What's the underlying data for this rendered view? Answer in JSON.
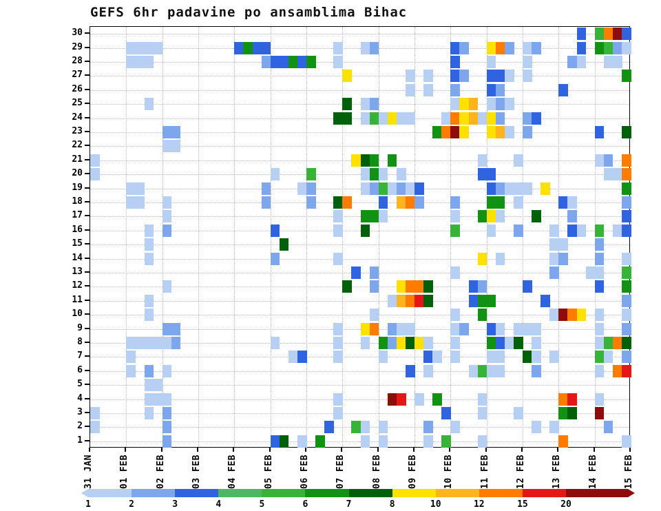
{
  "chart_data": {
    "type": "heatmap",
    "title": "GEFS 6hr padavine po ansamblima Bihac",
    "x_axis": {
      "tick_labels": [
        "31 JAN",
        "01 FEB",
        "02 FEB",
        "03 FEB",
        "04 FEB",
        "05 FEB",
        "06 FEB",
        "07 FEB",
        "08 FEB",
        "09 FEB",
        "10 FEB",
        "11 FEB",
        "12 FEB",
        "13 FEB",
        "14 FEB",
        "15 FEB"
      ],
      "steps_per_day": 4,
      "n_steps": 60
    },
    "y_axis": {
      "tick_labels": [
        "1",
        "2",
        "3",
        "4",
        "5",
        "6",
        "7",
        "8",
        "9",
        "10",
        "11",
        "12",
        "13",
        "14",
        "15",
        "16",
        "17",
        "18",
        "19",
        "20",
        "21",
        "22",
        "23",
        "24",
        "25",
        "26",
        "27",
        "28",
        "29",
        "30"
      ]
    },
    "legend": {
      "tick_labels": [
        "1",
        "2",
        "3",
        "4",
        "5",
        "6",
        "7",
        "8",
        "10",
        "12",
        "15",
        "20"
      ],
      "values": [
        1,
        2,
        3,
        4,
        5,
        6,
        7,
        8,
        10,
        12,
        15,
        20
      ],
      "colors": [
        "#b7cff2",
        "#7da6ec",
        "#2f63e0",
        "#4db863",
        "#37b337",
        "#129212",
        "#01610a",
        "#ffe100",
        "#ffb41e",
        "#ff7c00",
        "#e51616",
        "#8e0c0c"
      ]
    },
    "grid": {
      "style": "dotted",
      "vertical_every_day": true,
      "horizontal_every_member": true
    },
    "cell_fields": [
      "member",
      "timestep_6hr_from_31JAN",
      "legend_color_level"
    ],
    "cells": [
      [
        30,
        54,
        3
      ],
      [
        30,
        56,
        5
      ],
      [
        30,
        57,
        10
      ],
      [
        30,
        58,
        12
      ],
      [
        30,
        59,
        3
      ],
      [
        29,
        4,
        1
      ],
      [
        29,
        5,
        1
      ],
      [
        29,
        6,
        1
      ],
      [
        29,
        7,
        1
      ],
      [
        29,
        16,
        3
      ],
      [
        29,
        17,
        6
      ],
      [
        29,
        18,
        3
      ],
      [
        29,
        19,
        3
      ],
      [
        29,
        27,
        1
      ],
      [
        29,
        30,
        1
      ],
      [
        29,
        31,
        2
      ],
      [
        29,
        40,
        3
      ],
      [
        29,
        41,
        2
      ],
      [
        29,
        44,
        8
      ],
      [
        29,
        45,
        10
      ],
      [
        29,
        46,
        2
      ],
      [
        29,
        48,
        1
      ],
      [
        29,
        49,
        2
      ],
      [
        29,
        54,
        3
      ],
      [
        29,
        56,
        6
      ],
      [
        29,
        57,
        5
      ],
      [
        29,
        58,
        2
      ],
      [
        29,
        59,
        1
      ],
      [
        28,
        4,
        1
      ],
      [
        28,
        5,
        1
      ],
      [
        28,
        6,
        1
      ],
      [
        28,
        19,
        2
      ],
      [
        28,
        20,
        3
      ],
      [
        28,
        21,
        3
      ],
      [
        28,
        22,
        6
      ],
      [
        28,
        23,
        3
      ],
      [
        28,
        24,
        6
      ],
      [
        28,
        27,
        1
      ],
      [
        28,
        40,
        3
      ],
      [
        28,
        44,
        1
      ],
      [
        28,
        48,
        1
      ],
      [
        28,
        53,
        2
      ],
      [
        28,
        54,
        1
      ],
      [
        28,
        57,
        1
      ],
      [
        28,
        58,
        1
      ],
      [
        27,
        28,
        8
      ],
      [
        27,
        35,
        1
      ],
      [
        27,
        37,
        1
      ],
      [
        27,
        40,
        3
      ],
      [
        27,
        41,
        2
      ],
      [
        27,
        44,
        3
      ],
      [
        27,
        45,
        3
      ],
      [
        27,
        46,
        1
      ],
      [
        27,
        48,
        1
      ],
      [
        27,
        59,
        6
      ],
      [
        26,
        35,
        1
      ],
      [
        26,
        37,
        1
      ],
      [
        26,
        40,
        2
      ],
      [
        26,
        44,
        3
      ],
      [
        26,
        45,
        2
      ],
      [
        26,
        52,
        3
      ],
      [
        25,
        6,
        1
      ],
      [
        25,
        28,
        7
      ],
      [
        25,
        30,
        1
      ],
      [
        25,
        31,
        2
      ],
      [
        25,
        40,
        1
      ],
      [
        25,
        41,
        8
      ],
      [
        25,
        42,
        9
      ],
      [
        25,
        44,
        1
      ],
      [
        25,
        45,
        2
      ],
      [
        25,
        46,
        1
      ],
      [
        24,
        27,
        7
      ],
      [
        24,
        28,
        7
      ],
      [
        24,
        30,
        1
      ],
      [
        24,
        31,
        5
      ],
      [
        24,
        32,
        1
      ],
      [
        24,
        33,
        8
      ],
      [
        24,
        34,
        1
      ],
      [
        24,
        35,
        1
      ],
      [
        24,
        39,
        1
      ],
      [
        24,
        40,
        10
      ],
      [
        24,
        41,
        8
      ],
      [
        24,
        42,
        9
      ],
      [
        24,
        43,
        1
      ],
      [
        24,
        44,
        8
      ],
      [
        24,
        45,
        2
      ],
      [
        24,
        48,
        2
      ],
      [
        24,
        49,
        3
      ],
      [
        23,
        8,
        2
      ],
      [
        23,
        9,
        2
      ],
      [
        23,
        38,
        6
      ],
      [
        23,
        39,
        10
      ],
      [
        23,
        40,
        12
      ],
      [
        23,
        41,
        8
      ],
      [
        23,
        44,
        8
      ],
      [
        23,
        45,
        9
      ],
      [
        23,
        46,
        1
      ],
      [
        23,
        48,
        2
      ],
      [
        23,
        56,
        3
      ],
      [
        23,
        59,
        7
      ],
      [
        22,
        8,
        1
      ],
      [
        22,
        9,
        1
      ],
      [
        21,
        0,
        1
      ],
      [
        21,
        29,
        8
      ],
      [
        21,
        30,
        7
      ],
      [
        21,
        31,
        6
      ],
      [
        21,
        33,
        6
      ],
      [
        21,
        43,
        1
      ],
      [
        21,
        47,
        1
      ],
      [
        21,
        56,
        1
      ],
      [
        21,
        57,
        2
      ],
      [
        21,
        59,
        10
      ],
      [
        20,
        0,
        1
      ],
      [
        20,
        20,
        1
      ],
      [
        20,
        24,
        5
      ],
      [
        20,
        30,
        1
      ],
      [
        20,
        31,
        6
      ],
      [
        20,
        32,
        1
      ],
      [
        20,
        34,
        1
      ],
      [
        20,
        43,
        3
      ],
      [
        20,
        44,
        3
      ],
      [
        20,
        57,
        1
      ],
      [
        20,
        58,
        1
      ],
      [
        20,
        59,
        10
      ],
      [
        19,
        4,
        1
      ],
      [
        19,
        5,
        1
      ],
      [
        19,
        19,
        2
      ],
      [
        19,
        23,
        1
      ],
      [
        19,
        24,
        2
      ],
      [
        19,
        30,
        1
      ],
      [
        19,
        31,
        2
      ],
      [
        19,
        32,
        5
      ],
      [
        19,
        33,
        1
      ],
      [
        19,
        34,
        2
      ],
      [
        19,
        35,
        1
      ],
      [
        19,
        36,
        3
      ],
      [
        19,
        44,
        3
      ],
      [
        19,
        45,
        2
      ],
      [
        19,
        46,
        1
      ],
      [
        19,
        47,
        1
      ],
      [
        19,
        48,
        1
      ],
      [
        19,
        50,
        8
      ],
      [
        19,
        59,
        6
      ],
      [
        18,
        4,
        1
      ],
      [
        18,
        5,
        1
      ],
      [
        18,
        8,
        1
      ],
      [
        18,
        19,
        2
      ],
      [
        18,
        24,
        2
      ],
      [
        18,
        27,
        7
      ],
      [
        18,
        28,
        10
      ],
      [
        18,
        32,
        3
      ],
      [
        18,
        34,
        9
      ],
      [
        18,
        35,
        10
      ],
      [
        18,
        36,
        2
      ],
      [
        18,
        40,
        2
      ],
      [
        18,
        44,
        6
      ],
      [
        18,
        45,
        6
      ],
      [
        18,
        47,
        1
      ],
      [
        18,
        52,
        3
      ],
      [
        18,
        53,
        1
      ],
      [
        18,
        59,
        2
      ],
      [
        17,
        8,
        1
      ],
      [
        17,
        27,
        1
      ],
      [
        17,
        30,
        6
      ],
      [
        17,
        31,
        6
      ],
      [
        17,
        32,
        1
      ],
      [
        17,
        40,
        1
      ],
      [
        17,
        43,
        6
      ],
      [
        17,
        44,
        8
      ],
      [
        17,
        45,
        1
      ],
      [
        17,
        49,
        7
      ],
      [
        17,
        53,
        2
      ],
      [
        17,
        59,
        3
      ],
      [
        16,
        6,
        1
      ],
      [
        16,
        8,
        2
      ],
      [
        16,
        20,
        3
      ],
      [
        16,
        27,
        1
      ],
      [
        16,
        30,
        7
      ],
      [
        16,
        40,
        5
      ],
      [
        16,
        44,
        1
      ],
      [
        16,
        47,
        2
      ],
      [
        16,
        51,
        1
      ],
      [
        16,
        53,
        3
      ],
      [
        16,
        54,
        1
      ],
      [
        16,
        56,
        5
      ],
      [
        16,
        58,
        1
      ],
      [
        16,
        59,
        3
      ],
      [
        15,
        6,
        1
      ],
      [
        15,
        21,
        7
      ],
      [
        15,
        51,
        1
      ],
      [
        15,
        52,
        1
      ],
      [
        15,
        56,
        2
      ],
      [
        14,
        6,
        1
      ],
      [
        14,
        20,
        2
      ],
      [
        14,
        27,
        1
      ],
      [
        14,
        43,
        8
      ],
      [
        14,
        45,
        1
      ],
      [
        14,
        51,
        1
      ],
      [
        14,
        52,
        2
      ],
      [
        14,
        56,
        2
      ],
      [
        14,
        59,
        1
      ],
      [
        13,
        29,
        3
      ],
      [
        13,
        31,
        2
      ],
      [
        13,
        40,
        1
      ],
      [
        13,
        51,
        2
      ],
      [
        13,
        55,
        1
      ],
      [
        13,
        56,
        1
      ],
      [
        13,
        59,
        5
      ],
      [
        12,
        8,
        1
      ],
      [
        12,
        28,
        7
      ],
      [
        12,
        31,
        2
      ],
      [
        12,
        34,
        8
      ],
      [
        12,
        35,
        10
      ],
      [
        12,
        36,
        10
      ],
      [
        12,
        37,
        7
      ],
      [
        12,
        42,
        3
      ],
      [
        12,
        43,
        2
      ],
      [
        12,
        48,
        3
      ],
      [
        12,
        56,
        3
      ],
      [
        12,
        59,
        6
      ],
      [
        11,
        6,
        1
      ],
      [
        11,
        33,
        1
      ],
      [
        11,
        34,
        9
      ],
      [
        11,
        35,
        10
      ],
      [
        11,
        36,
        11
      ],
      [
        11,
        37,
        7
      ],
      [
        11,
        42,
        3
      ],
      [
        11,
        43,
        6
      ],
      [
        11,
        44,
        6
      ],
      [
        11,
        50,
        3
      ],
      [
        11,
        59,
        2
      ],
      [
        10,
        6,
        1
      ],
      [
        10,
        31,
        1
      ],
      [
        10,
        40,
        1
      ],
      [
        10,
        43,
        6
      ],
      [
        10,
        51,
        1
      ],
      [
        10,
        52,
        12
      ],
      [
        10,
        53,
        10
      ],
      [
        10,
        54,
        8
      ],
      [
        10,
        56,
        1
      ],
      [
        10,
        59,
        1
      ],
      [
        9,
        8,
        2
      ],
      [
        9,
        9,
        2
      ],
      [
        9,
        27,
        1
      ],
      [
        9,
        30,
        8
      ],
      [
        9,
        31,
        10
      ],
      [
        9,
        33,
        2
      ],
      [
        9,
        34,
        1
      ],
      [
        9,
        35,
        1
      ],
      [
        9,
        40,
        1
      ],
      [
        9,
        41,
        2
      ],
      [
        9,
        44,
        3
      ],
      [
        9,
        45,
        1
      ],
      [
        9,
        47,
        1
      ],
      [
        9,
        48,
        1
      ],
      [
        9,
        49,
        1
      ],
      [
        9,
        56,
        1
      ],
      [
        9,
        59,
        2
      ],
      [
        8,
        4,
        1
      ],
      [
        8,
        5,
        1
      ],
      [
        8,
        6,
        1
      ],
      [
        8,
        7,
        1
      ],
      [
        8,
        8,
        1
      ],
      [
        8,
        9,
        2
      ],
      [
        8,
        20,
        1
      ],
      [
        8,
        27,
        1
      ],
      [
        8,
        30,
        1
      ],
      [
        8,
        32,
        6
      ],
      [
        8,
        33,
        2
      ],
      [
        8,
        34,
        8
      ],
      [
        8,
        35,
        7
      ],
      [
        8,
        36,
        8
      ],
      [
        8,
        37,
        1
      ],
      [
        8,
        40,
        1
      ],
      [
        8,
        44,
        6
      ],
      [
        8,
        45,
        3
      ],
      [
        8,
        46,
        1
      ],
      [
        8,
        47,
        7
      ],
      [
        8,
        49,
        1
      ],
      [
        8,
        56,
        1
      ],
      [
        8,
        57,
        5
      ],
      [
        8,
        58,
        10
      ],
      [
        8,
        59,
        7
      ],
      [
        7,
        4,
        1
      ],
      [
        7,
        22,
        1
      ],
      [
        7,
        23,
        3
      ],
      [
        7,
        27,
        1
      ],
      [
        7,
        32,
        1
      ],
      [
        7,
        37,
        3
      ],
      [
        7,
        38,
        1
      ],
      [
        7,
        40,
        1
      ],
      [
        7,
        44,
        1
      ],
      [
        7,
        45,
        1
      ],
      [
        7,
        48,
        7
      ],
      [
        7,
        49,
        1
      ],
      [
        7,
        51,
        1
      ],
      [
        7,
        56,
        5
      ],
      [
        7,
        57,
        1
      ],
      [
        7,
        59,
        2
      ],
      [
        6,
        4,
        1
      ],
      [
        6,
        6,
        2
      ],
      [
        6,
        8,
        1
      ],
      [
        6,
        35,
        3
      ],
      [
        6,
        37,
        1
      ],
      [
        6,
        42,
        1
      ],
      [
        6,
        43,
        5
      ],
      [
        6,
        44,
        1
      ],
      [
        6,
        45,
        1
      ],
      [
        6,
        49,
        2
      ],
      [
        6,
        56,
        1
      ],
      [
        6,
        58,
        10
      ],
      [
        6,
        59,
        11
      ],
      [
        5,
        6,
        1
      ],
      [
        5,
        7,
        1
      ],
      [
        4,
        6,
        1
      ],
      [
        4,
        7,
        1
      ],
      [
        4,
        8,
        1
      ],
      [
        4,
        27,
        1
      ],
      [
        4,
        33,
        12
      ],
      [
        4,
        34,
        11
      ],
      [
        4,
        36,
        1
      ],
      [
        4,
        38,
        6
      ],
      [
        4,
        43,
        1
      ],
      [
        4,
        52,
        10
      ],
      [
        4,
        53,
        11
      ],
      [
        4,
        56,
        1
      ],
      [
        3,
        0,
        1
      ],
      [
        3,
        6,
        1
      ],
      [
        3,
        8,
        2
      ],
      [
        3,
        27,
        1
      ],
      [
        3,
        39,
        3
      ],
      [
        3,
        43,
        1
      ],
      [
        3,
        47,
        1
      ],
      [
        3,
        52,
        6
      ],
      [
        3,
        53,
        7
      ],
      [
        3,
        56,
        12
      ],
      [
        2,
        0,
        1
      ],
      [
        2,
        8,
        2
      ],
      [
        2,
        26,
        3
      ],
      [
        2,
        29,
        5
      ],
      [
        2,
        30,
        1
      ],
      [
        2,
        32,
        1
      ],
      [
        2,
        37,
        2
      ],
      [
        2,
        40,
        1
      ],
      [
        2,
        49,
        1
      ],
      [
        2,
        51,
        1
      ],
      [
        2,
        57,
        2
      ],
      [
        1,
        8,
        2
      ],
      [
        1,
        20,
        3
      ],
      [
        1,
        21,
        7
      ],
      [
        1,
        23,
        1
      ],
      [
        1,
        25,
        6
      ],
      [
        1,
        30,
        1
      ],
      [
        1,
        32,
        1
      ],
      [
        1,
        37,
        1
      ],
      [
        1,
        39,
        5
      ],
      [
        1,
        43,
        1
      ],
      [
        1,
        52,
        10
      ],
      [
        1,
        59,
        1
      ]
    ]
  }
}
